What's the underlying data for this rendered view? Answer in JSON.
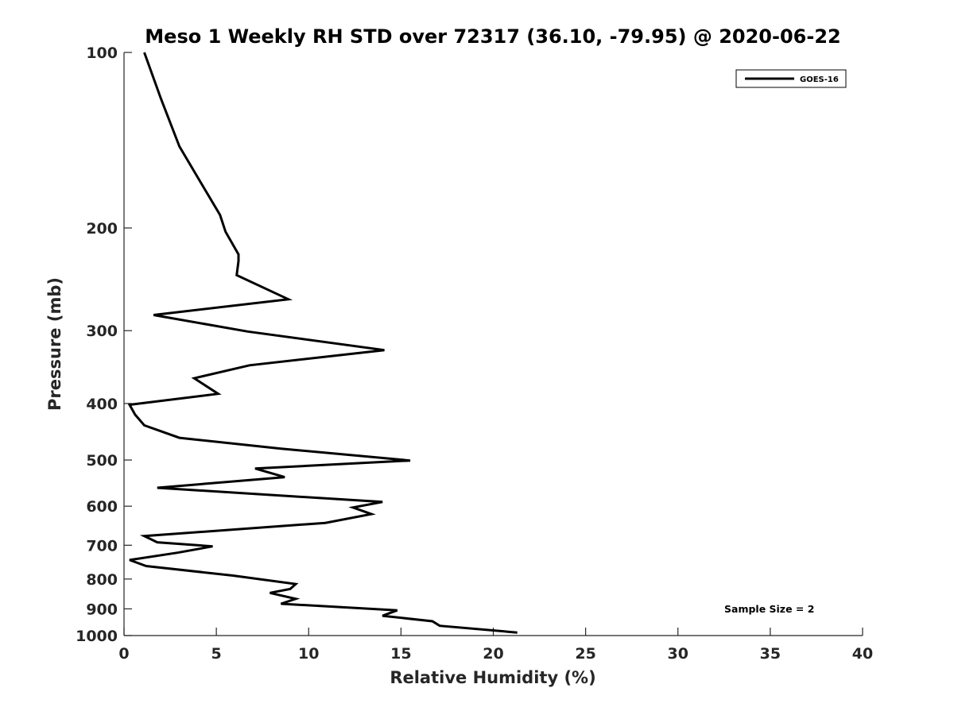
{
  "chart_data": {
    "type": "line",
    "title": "Meso 1 Weekly RH STD over 72317 (36.10, -79.95) @ 2020-06-22",
    "xlabel": "Relative Humidity (%)",
    "ylabel": "Pressure (mb)",
    "xlim": [
      0,
      40
    ],
    "ylim": [
      1000,
      100
    ],
    "yscale": "log",
    "y_reversed": true,
    "xticks": [
      0,
      5,
      10,
      15,
      20,
      25,
      30,
      35,
      40
    ],
    "yticks": [
      100,
      200,
      300,
      400,
      500,
      600,
      700,
      800,
      900,
      1000
    ],
    "grid": false,
    "legend_position": "top-right",
    "annotation": "Sample Size = 2",
    "series": [
      {
        "name": "GOES-16",
        "color": "#000000",
        "x": [
          1.1,
          2.0,
          3.0,
          4.2,
          5.2,
          5.5,
          6.2,
          6.2,
          6.1,
          8.9,
          1.6,
          6.7,
          14.1,
          6.8,
          3.8,
          5.1,
          0.3,
          0.6,
          1.1,
          3.0,
          8.5,
          15.5,
          7.1,
          8.7,
          1.8,
          14.0,
          12.4,
          13.4,
          10.9,
          1.1,
          1.8,
          4.8,
          2.9,
          0.3,
          1.2,
          5.9,
          9.3,
          9.0,
          7.9,
          9.3,
          8.5,
          14.8,
          14.0,
          16.7,
          17.1,
          21.3
        ],
        "y": [
          100,
          120,
          145,
          168,
          190,
          203,
          222,
          228,
          241,
          265,
          282,
          301,
          324,
          344,
          362,
          385,
          402,
          418,
          436,
          458,
          478,
          501,
          517,
          535,
          558,
          590,
          603,
          619,
          641,
          675,
          692,
          703,
          721,
          742,
          760,
          789,
          816,
          832,
          845,
          865,
          882,
          905,
          925,
          945,
          962,
          988
        ]
      }
    ]
  }
}
